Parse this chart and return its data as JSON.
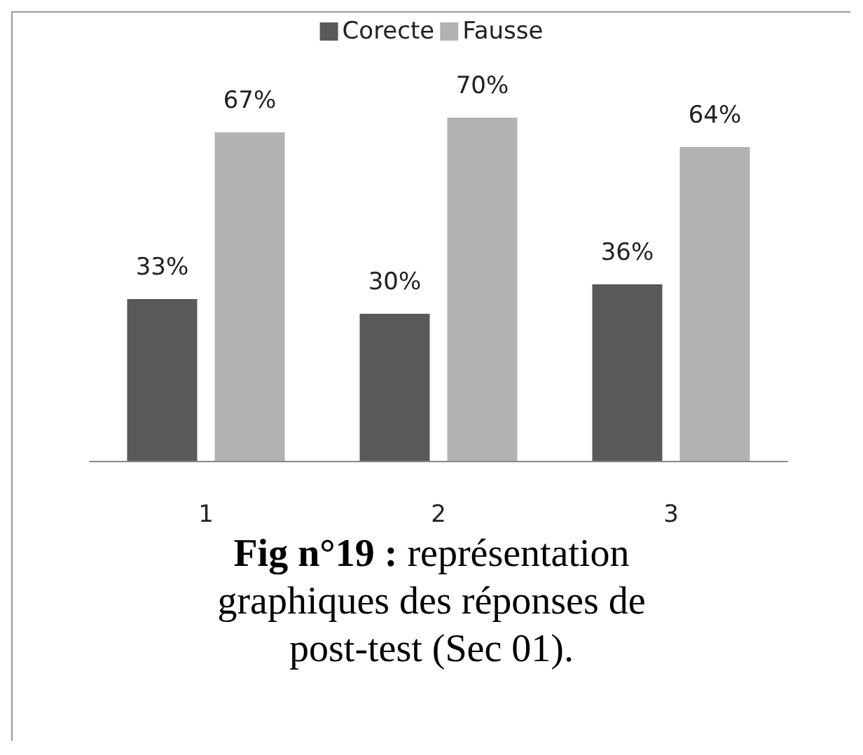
{
  "chart_data": {
    "type": "bar",
    "categories": [
      "1",
      "2",
      "3"
    ],
    "series": [
      {
        "name": "Corecte",
        "color": "#595959",
        "values": [
          33,
          30,
          36
        ],
        "value_labels": [
          "33%",
          "30%",
          "36%"
        ]
      },
      {
        "name": "Fausse",
        "color": "#b2b2b2",
        "values": [
          67,
          70,
          64
        ],
        "value_labels": [
          "67%",
          "70%",
          "64%"
        ]
      }
    ],
    "legend": "top",
    "grid": false,
    "tick_labels": "x",
    "annotations": [
      "Fig n°19 : représentation graphiques des réponses de post-test (Sec 01)."
    ]
  }
}
